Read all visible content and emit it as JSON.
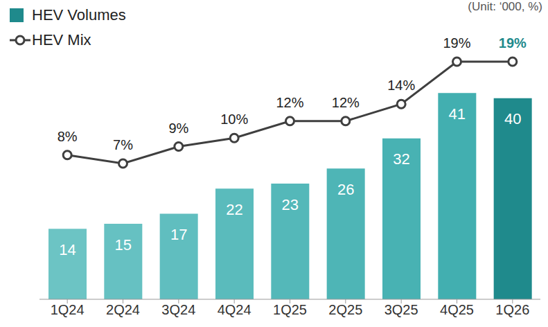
{
  "chart_data": {
    "type": "bar",
    "annotations": [
      "(Unit: ‘000, %)"
    ],
    "categories": [
      "1Q24",
      "2Q24",
      "3Q24",
      "4Q24",
      "1Q25",
      "2Q25",
      "3Q25",
      "4Q25",
      "1Q26"
    ],
    "series": [
      {
        "name": "HEV Volumes",
        "type": "bar",
        "values": [
          14,
          15,
          17,
          22,
          23,
          26,
          32,
          41,
          40
        ],
        "colors": [
          "#6cc4c4",
          "#66c1c2",
          "#60bebf",
          "#5abbbc",
          "#54b8b9",
          "#4eb5b6",
          "#48b2b3",
          "#42afb0",
          "#1f8a8c"
        ]
      },
      {
        "name": "HEV Mix",
        "type": "line",
        "axis": "y2",
        "color": "#3f3f3f",
        "marker": "circle",
        "values": [
          8,
          7,
          9,
          10,
          12,
          12,
          14,
          19,
          19
        ],
        "value_labels": [
          "8%",
          "7%",
          "9%",
          "10%",
          "12%",
          "12%",
          "14%",
          "19%",
          "19%"
        ]
      }
    ],
    "ylim": [
      0,
      54
    ],
    "y2lim": [
      -9,
      23
    ],
    "data_labels": true,
    "legend": "top-left",
    "tick_labels": "x",
    "grid": false
  }
}
